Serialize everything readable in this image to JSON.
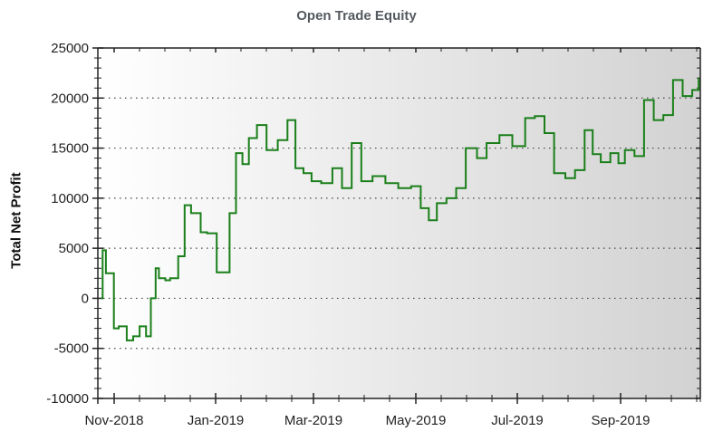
{
  "chart_data": {
    "type": "line",
    "title": "Open Trade Equity",
    "xlabel": "",
    "ylabel": "Total Net Profit",
    "ylim": [
      -10000,
      25000
    ],
    "yticks": [
      25000,
      20000,
      15000,
      10000,
      5000,
      0,
      -5000,
      -10000
    ],
    "xtick_labels": [
      "Nov-2018",
      "Jan-2019",
      "Mar-2019",
      "May-2019",
      "Jul-2019",
      "Sep-2019"
    ],
    "grid": "horizontal dotted",
    "legend": "none",
    "line_color": "#1a7f1a",
    "series": [
      {
        "name": "Open Trade Equity",
        "x": [
          "2018-10-17",
          "2018-10-18",
          "2018-10-20",
          "2018-10-25",
          "2018-10-28",
          "2018-11-02",
          "2018-11-06",
          "2018-11-10",
          "2018-11-14",
          "2018-11-17",
          "2018-11-20",
          "2018-11-22",
          "2018-11-26",
          "2018-11-29",
          "2018-12-04",
          "2018-12-08",
          "2018-12-12",
          "2018-12-18",
          "2018-12-22",
          "2018-12-28",
          "2019-01-01",
          "2019-01-05",
          "2019-01-09",
          "2019-01-13",
          "2019-01-17",
          "2019-01-22",
          "2019-01-28",
          "2019-02-04",
          "2019-02-10",
          "2019-02-15",
          "2019-02-20",
          "2019-02-25",
          "2019-03-03",
          "2019-03-10",
          "2019-03-16",
          "2019-03-22",
          "2019-03-28",
          "2019-04-04",
          "2019-04-12",
          "2019-04-20",
          "2019-04-28",
          "2019-05-04",
          "2019-05-09",
          "2019-05-14",
          "2019-05-20",
          "2019-05-26",
          "2019-06-01",
          "2019-06-08",
          "2019-06-14",
          "2019-06-22",
          "2019-06-30",
          "2019-07-08",
          "2019-07-14",
          "2019-07-20",
          "2019-07-26",
          "2019-08-02",
          "2019-08-08",
          "2019-08-14",
          "2019-08-19",
          "2019-08-24",
          "2019-08-30",
          "2019-09-04",
          "2019-09-08",
          "2019-09-14",
          "2019-09-20",
          "2019-09-26",
          "2019-10-02",
          "2019-10-08",
          "2019-10-14",
          "2019-10-20",
          "2019-10-24"
        ],
        "values": [
          0,
          4800,
          2500,
          -3000,
          -2800,
          -4200,
          -3800,
          -2800,
          -3800,
          0,
          3000,
          2000,
          1800,
          2000,
          4200,
          9300,
          8500,
          6600,
          6500,
          2600,
          2600,
          8500,
          14500,
          13400,
          16000,
          17300,
          14800,
          15800,
          17800,
          13000,
          12500,
          11700,
          11500,
          13000,
          11000,
          15500,
          11700,
          12200,
          11500,
          11000,
          11200,
          9000,
          7800,
          9500,
          10000,
          11000,
          15000,
          14000,
          15500,
          16300,
          15200,
          18000,
          18200,
          16500,
          12500,
          12000,
          12800,
          16800,
          14400,
          13600,
          14500,
          13500,
          14800,
          14200,
          19800,
          17800,
          18300,
          21800,
          20200,
          20800,
          22000
        ]
      }
    ]
  }
}
